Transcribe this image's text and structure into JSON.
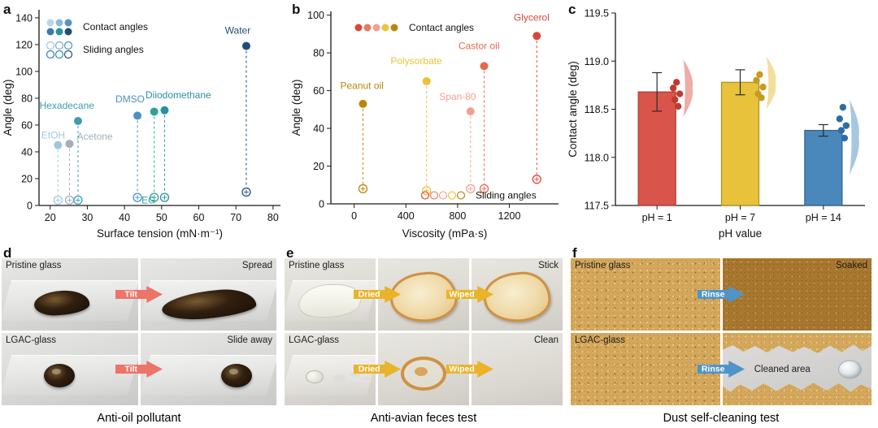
{
  "figure": {
    "panels": {
      "a": {
        "letter": "a"
      },
      "b": {
        "letter": "b"
      },
      "c": {
        "letter": "c"
      },
      "d": {
        "letter": "d",
        "caption": "Anti-oil pollutant",
        "rows": [
          {
            "left_label": "Pristine glass",
            "arrow": "Tilt",
            "right_label": "Spread"
          },
          {
            "left_label": "LGAC-glass",
            "arrow": "Tilt",
            "right_label": "Slide away"
          }
        ]
      },
      "e": {
        "letter": "e",
        "caption": "Anti-avian feces test",
        "rows": [
          {
            "left_label": "Pristine glass",
            "arrow1": "Dried",
            "arrow2": "Wiped",
            "right_label": "Stick"
          },
          {
            "left_label": "LGAC-glass",
            "arrow1": "Dried",
            "arrow2": "Wiped",
            "right_label": "Clean"
          }
        ]
      },
      "f": {
        "letter": "f",
        "caption": "Dust self-cleaning test",
        "rows": [
          {
            "left_label": "Pristine glass",
            "arrow": "Rinse",
            "right_label": "Soaked"
          },
          {
            "left_label": "LGAC-glass",
            "arrow": "Rinse",
            "right_label": "Cleaned area"
          }
        ]
      }
    }
  },
  "chart_data": [
    {
      "id": "a",
      "type": "scatter",
      "xlabel": "Surface tension (mN·m⁻¹)",
      "ylabel": "Angle (deg)",
      "xlim": [
        17,
        82
      ],
      "ylim": [
        0,
        146
      ],
      "xticks": [
        20,
        30,
        40,
        50,
        60,
        70,
        80
      ],
      "yticks": [
        0,
        20,
        40,
        60,
        80,
        100,
        120,
        140
      ],
      "legend": {
        "contact_label": "Contact angles",
        "sliding_label": "Sliding angles",
        "contact_colors": [
          "#b9d5ea",
          "#8fb9d9",
          "#5a94c6",
          "#3a7ab2",
          "#2a8f9e",
          "#1f4e79"
        ],
        "sliding_colors": [
          "#9ec7e0",
          "#7aa9c9",
          "#4a90c4",
          "#3a7ab2",
          "#2a8f9e",
          "#1f4e79"
        ]
      },
      "points": [
        {
          "label": "EtOH",
          "x": 22.1,
          "contact": 45,
          "sliding": 4,
          "color": "#9ec7e0",
          "lx": 17.6,
          "ly": 50,
          "anchor": "start"
        },
        {
          "label": "Acetone",
          "x": 25.2,
          "contact": 46,
          "sliding": 4,
          "color": "#9fb0bf",
          "lx": 27.2,
          "ly": 49,
          "anchor": "start"
        },
        {
          "label": "Hexadecane",
          "x": 27.5,
          "contact": 63,
          "sliding": 4,
          "color": "#3f9db0",
          "lx": 24.5,
          "ly": 72,
          "anchor": "middle"
        },
        {
          "label": "DMSO",
          "x": 43.5,
          "contact": 67,
          "sliding": 6,
          "color": "#4a90c4",
          "lx": 41.5,
          "ly": 77,
          "anchor": "middle"
        },
        {
          "label": "EG",
          "x": 48.0,
          "contact": 70,
          "sliding": 6,
          "color": "#2aa398",
          "lx": 46.5,
          "ly": 1.5,
          "anchor": "middle"
        },
        {
          "label": "Diiodomethane",
          "x": 50.8,
          "contact": 71,
          "sliding": 6,
          "color": "#2a8f9e",
          "lx": 54.5,
          "ly": 80,
          "anchor": "middle"
        },
        {
          "label": "Water",
          "x": 72.8,
          "contact": 119,
          "sliding": 10,
          "color": "#1f4e79",
          "lx": 70.5,
          "ly": 128,
          "anchor": "middle"
        }
      ]
    },
    {
      "id": "b",
      "type": "scatter",
      "xlabel": "Viscosity (mPa·s)",
      "ylabel": "Angle (deg)",
      "xlim": [
        -180,
        1580
      ],
      "ylim": [
        0,
        102
      ],
      "xticks": [
        0,
        400,
        800,
        1200
      ],
      "yticks": [
        0,
        20,
        40,
        60,
        80,
        100
      ],
      "legend": {
        "contact_label": "Contact angles",
        "sliding_label": "Sliding angles",
        "contact_colors": [
          "#d9473c",
          "#e87a5a",
          "#f2a08e",
          "#eec13c",
          "#b8860b"
        ],
        "sliding_colors": [
          "#d9473c",
          "#e87a5a",
          "#f2a08e",
          "#eec13c",
          "#b8860b"
        ]
      },
      "points": [
        {
          "label": "Peanut oil",
          "x": 68,
          "contact": 53,
          "sliding": 8,
          "color": "#b8860b",
          "lx": 60,
          "ly": 61,
          "anchor": "middle"
        },
        {
          "label": "Polysorbate",
          "x": 560,
          "contact": 65,
          "sliding": 7,
          "color": "#eec13c",
          "lx": 480,
          "ly": 74,
          "anchor": "middle"
        },
        {
          "label": "Span-80",
          "x": 900,
          "contact": 49,
          "sliding": 8,
          "color": "#f2a08e",
          "lx": 800,
          "ly": 55,
          "anchor": "middle"
        },
        {
          "label": "Castor oil",
          "x": 1005,
          "contact": 73,
          "sliding": 8,
          "color": "#e8684a",
          "lx": 965,
          "ly": 82,
          "anchor": "middle"
        },
        {
          "label": "Glycerol",
          "x": 1412,
          "contact": 89,
          "sliding": 13,
          "color": "#d9473c",
          "lx": 1372,
          "ly": 97,
          "anchor": "middle"
        }
      ]
    },
    {
      "id": "c",
      "type": "bar",
      "xlabel": "pH value",
      "ylabel": "Contact angle (deg)",
      "ylim": [
        117.5,
        119.5
      ],
      "yticks": [
        "117.5",
        "118.0",
        "118.5",
        "119.0",
        "119.5"
      ],
      "bars": [
        {
          "label": "pH = 1",
          "value": 118.68,
          "error": 0.2,
          "color": "#d9544a",
          "edge": "#a83c34",
          "dot_color": "#c03a30",
          "violin_color": "#eba39c",
          "dots": [
            118.78,
            118.72,
            118.66,
            118.6,
            118.53
          ],
          "violin": [
            118.42,
            119.02
          ]
        },
        {
          "label": "pH = 7",
          "value": 118.78,
          "error": 0.13,
          "color": "#e8c23a",
          "edge": "#b08e24",
          "dot_color": "#c89a22",
          "violin_color": "#f2dc90",
          "dots": [
            118.86,
            118.8,
            118.73,
            118.66,
            118.62
          ],
          "violin": [
            118.5,
            119.05
          ]
        },
        {
          "label": "pH = 14",
          "value": 118.28,
          "error": 0.06,
          "color": "#4a88bc",
          "edge": "#2e628e",
          "dot_color": "#2e6da4",
          "violin_color": "#9cc2dc",
          "dots": [
            118.52,
            118.4,
            118.33,
            118.28,
            118.2
          ],
          "violin": [
            117.82,
            118.6
          ]
        }
      ]
    }
  ]
}
